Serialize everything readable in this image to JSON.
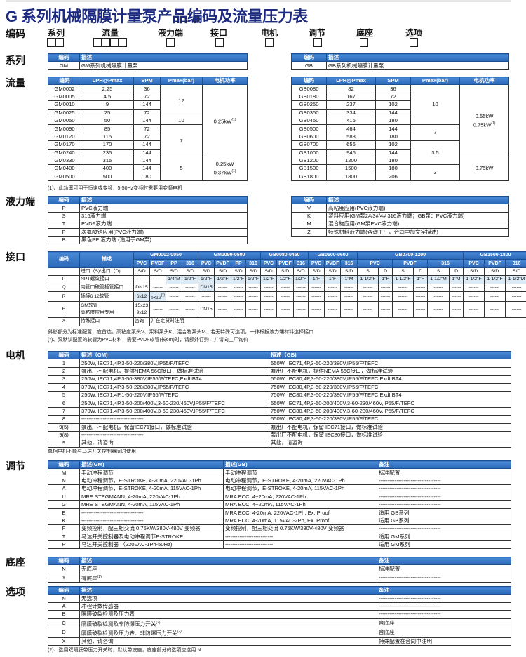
{
  "title": "G 系列机械隔膜计量泵产品编码及流量压力表",
  "code_row": {
    "label": "编码",
    "fields": [
      {
        "label": "系列",
        "boxes": 2
      },
      {
        "label": "流量",
        "boxes": 4
      },
      {
        "label": "液力端",
        "boxes": 1
      },
      {
        "label": "接口",
        "boxes": 1
      },
      {
        "label": "电机",
        "boxes": 1
      },
      {
        "label": "调节",
        "boxes": 1
      },
      {
        "label": "底座",
        "boxes": 1
      },
      {
        "label": "选项",
        "boxes": 1
      }
    ]
  },
  "sections": {
    "series": "系列",
    "flow": "流量",
    "wet_end": "液力端",
    "connection": "接口",
    "motor": "电机",
    "control": "调节",
    "base": "底座",
    "options": "选项"
  },
  "theme": {
    "header_blue": "#2e74c5",
    "highlight": "#dceaf6",
    "title_color": "#1c2a80"
  },
  "tables": {
    "series_gm": {
      "header": [
        [
          "编码",
          "描述"
        ]
      ],
      "rows": [
        [
          "GM",
          "GM系列机械隔膜计量泵"
        ]
      ]
    },
    "series_gb": {
      "header": [
        [
          "编码",
          "描述"
        ]
      ],
      "rows": [
        [
          "GB",
          "GB系列机械隔膜计量泵"
        ]
      ]
    },
    "flow_gm": {
      "header": [
        [
          "编码",
          "LPH@Pmax",
          "SPM",
          "Pmax(bar)",
          "电机功率"
        ]
      ],
      "rows": [
        [
          "GM0002",
          "2.25",
          "36",
          {
            "t": "12",
            "rs": 4
          },
          {
            "t": "0.25kW",
            "sup": "(1)",
            "rs": 9
          }
        ],
        [
          "GM0005",
          "4.5",
          "72"
        ],
        [
          "GM0010",
          "9",
          "144"
        ],
        [
          "GM0025",
          "25",
          "72"
        ],
        [
          "GM0050",
          "50",
          "144",
          "10"
        ],
        [
          "GM0090",
          "85",
          "72",
          {
            "t": "7",
            "rs": 4
          }
        ],
        [
          "GM0120",
          "115",
          "72"
        ],
        [
          "GM0170",
          "170",
          "144"
        ],
        [
          "GM0240",
          "235",
          "144"
        ],
        [
          "GM0330",
          "315",
          "144",
          {
            "t": "5",
            "rs": 3
          },
          {
            "t": "0.25kW",
            "t2": "0.37kW",
            "sup": "(1)",
            "rs": 3
          }
        ],
        [
          "GM0400",
          "400",
          "144"
        ],
        [
          "GM0500",
          "500",
          "180"
        ]
      ]
    },
    "flow_gb": {
      "header": [
        [
          "编码",
          "LPH@Pmax",
          "SPM",
          "Pmax(bar)",
          "电机功率"
        ]
      ],
      "rows": [
        [
          "GB0080",
          "82",
          "36",
          {
            "t": "10",
            "rs": 5
          },
          {
            "t": "0.55kW",
            "t2": "0.75kW",
            "sup": "(1)",
            "rs": 9
          }
        ],
        [
          "GB0180",
          "167",
          "72"
        ],
        [
          "GB0250",
          "237",
          "102"
        ],
        [
          "GB0350",
          "334",
          "144"
        ],
        [
          "GB0450",
          "416",
          "180"
        ],
        [
          "GB0500",
          "464",
          "144",
          {
            "t": "7",
            "rs": 2
          }
        ],
        [
          "GB0600",
          "583",
          "180"
        ],
        [
          "GB0700",
          "656",
          "102",
          {
            "t": "3.5",
            "rs": 3
          }
        ],
        [
          "GB1000",
          "946",
          "144"
        ],
        [
          "GB1200",
          "1200",
          "180",
          {
            "t": "0.75kW",
            "rs": 3
          }
        ],
        [
          "GB1500",
          "1500",
          "180",
          {
            "t": "3",
            "rs": 2
          }
        ],
        [
          "GB1800",
          "1800",
          "206"
        ]
      ]
    },
    "wet_left": {
      "header": [
        [
          "编码",
          "描述"
        ]
      ],
      "rows": [
        [
          "P",
          "PVC液力端"
        ],
        [
          "S",
          "316液力端"
        ],
        [
          "T",
          "PVDF液力端"
        ],
        [
          "F",
          "次氯酸钠应用(PVC液力端)"
        ],
        [
          "B",
          "黑色PP 液力端 (适用于GM泵)"
        ]
      ]
    },
    "wet_right": {
      "header": [
        [
          "编码",
          "描述"
        ]
      ],
      "rows": [
        [
          "V",
          "高粘度应用(PVC液力端)"
        ],
        [
          "K",
          "浆料应用(GM泵2#/3#/4# 316液力端；GB泵：PVC液力端)"
        ],
        [
          "M",
          "混合物应用(GM泵PVC液力端)"
        ],
        [
          "Z",
          "特殊材料液力端(咨询工厂，合同中加文字描述)"
        ]
      ]
    },
    "connection": {
      "header": [
        [
          {
            "t": "编码",
            "rs": 2
          },
          {
            "t": "描述",
            "rs": 2
          },
          {
            "t": "GM0002-0050",
            "cs": 4
          },
          {
            "t": "GM0090-0500",
            "cs": 4
          },
          {
            "t": "GB0080-0450",
            "cs": 3
          },
          {
            "t": "GB0500-0600",
            "cs": 3
          },
          {
            "t": "GB0700-1200",
            "cs": 6
          },
          {
            "t": "GB1500-1800",
            "cs": 3
          }
        ],
        [
          "PVC",
          "PVDF",
          "PP",
          "316",
          "PVC",
          "PVDF",
          "PP",
          "316",
          "PVC",
          "PVDF",
          "316",
          "PVC",
          "PVDF",
          "316",
          {
            "t": "PVC",
            "cs": 2
          },
          {
            "t": "PVDF",
            "cs": 2
          },
          {
            "t": "316",
            "cs": 2
          },
          "PVC",
          "PVDF",
          "316"
        ]
      ],
      "rows": [
        [
          "",
          "进口（S)/出口（D)",
          "S/D",
          "S/D",
          "S/D",
          "S/D",
          "S/D",
          "S/D",
          "S/D",
          "S/D",
          "S/D",
          "S/D",
          "S/D",
          "S/D",
          "S/D",
          "S/D",
          "S",
          "D",
          "S",
          "D",
          "S",
          "D",
          "S/D",
          "S/D",
          "S/D"
        ],
        [
          "P",
          "NPT螺纹接口",
          "------",
          "------",
          {
            "t": "1/4\"M",
            "hl": 1
          },
          {
            "t": "1/2\"F",
            "hl": 1
          },
          {
            "t": "1/2\"F",
            "hl": 1
          },
          {
            "t": "1/2\"F",
            "hl": 1
          },
          {
            "t": "1/2\"F",
            "hl": 1
          },
          {
            "t": "1/2\"F",
            "hl": 1
          },
          {
            "t": "1/2\"F",
            "hl": 1
          },
          {
            "t": "1/2\"F",
            "hl": 1
          },
          {
            "t": "1/2\"F",
            "hl": 1
          },
          {
            "t": "1\"F",
            "hl": 1
          },
          {
            "t": "1\"F",
            "hl": 1
          },
          {
            "t": "1\"M",
            "hl": 1
          },
          {
            "t": "1-1/2\"F",
            "hl": 1
          },
          {
            "t": "1\"F",
            "hl": 1
          },
          {
            "t": "1-1/2\"F",
            "hl": 1
          },
          {
            "t": "1\"F",
            "hl": 1
          },
          {
            "t": "1-1/2\"M",
            "hl": 1
          },
          {
            "t": "1\"M",
            "hl": 1
          },
          {
            "t": "1-1/2\"F",
            "hl": 1
          },
          {
            "t": "1-1/2\"F",
            "hl": 1
          },
          {
            "t": "1-1/2\"M",
            "hl": 1
          }
        ],
        [
          "Q",
          "内管口破管插管接口",
          "DN15",
          "------",
          "------",
          "------",
          {
            "t": "DN15",
            "hl": 1
          },
          "------",
          "------",
          "------",
          "------",
          "------",
          "------",
          "------",
          "------",
          "------",
          "------",
          "------",
          "------",
          "------",
          "------",
          "------",
          "------",
          "------",
          "------"
        ],
        [
          "R",
          "插接6   12软管",
          {
            "t": "6x12",
            "hl": 1
          },
          {
            "t": "6x12",
            "sup": "(*)",
            "hl": 1
          },
          "------",
          "------",
          "------",
          "------",
          "------",
          "------",
          "------",
          "------",
          "------",
          "------",
          "------",
          "------",
          "------",
          "------",
          "------",
          "------",
          "------",
          "------",
          "------",
          "------",
          "------"
        ],
        [
          "H",
          {
            "t": "GM软管",
            "t2": "高粘度应用专用"
          },
          {
            "t": "15x23",
            "t2": "9x12"
          },
          "------",
          "------",
          "------",
          "DN15",
          "------",
          "------",
          "------",
          "------",
          "------",
          "------",
          "------",
          "------",
          "------",
          "------",
          "------",
          "------",
          "------",
          "------",
          "------",
          "------",
          "------",
          "------"
        ],
        [
          "X",
          "特殊接口",
          "咨询",
          {
            "t": "并在定货时注明",
            "cs": 22
          }
        ]
      ]
    },
    "motor": {
      "header": [
        [
          "编码",
          "描述（GM)",
          "描述（GB)"
        ]
      ],
      "rows": [
        [
          "1",
          "250W, IEC71,4P,3-50-220/380V,IP55/F/TEFC",
          "550W, IEC71,4P,3-50-220/380V,IP55/F/TEFC"
        ],
        [
          "2",
          "泵出厂不配电机，提供NEMA 56C接口，做标准试验",
          "泵出厂不配电机，提供NEMA 56C接口，做标准试验"
        ],
        [
          "3",
          "250W, IEC71,4P,3-50-380V,IP55/F/TEFC,ExdIIBT4",
          "550W, IEC80,4P,3-50-220/380V,IP55/F/TEFC,ExdIIBT4"
        ],
        [
          "4",
          "370W, IEC71,4P,3-50-220/380V,IP55/F/TEFC",
          "750W, IEC80,4P,3-50-220/380V,IP55/F/TEFC"
        ],
        [
          "5",
          "250W, IEC71,4P,1-50-220V,IP55/F/TEFC",
          "750W, IEC80,4P,3-50-220/380V,IP55/F/TEFC,ExdIIBT4"
        ],
        [
          "6",
          "250W, IEC71,4P,3-50-200/400V,3-60-230/460V,IP55/F/TEFC",
          "550W, IEC71,4P,3-50-200/400V,3-60-230/460V,IP55/F/TEFC"
        ],
        [
          "7",
          "370W, IEC71,4P,3-50-200/400V,3-60-230/460V,IP55/F/TEFC",
          "750W, IEC80,4P,3-50-200/400V,3-60-230/460V,IP55/F/TEFC"
        ],
        [
          "8",
          "-----------------------------------",
          "550W, IEC80,4P,3-50-220/380V,IP55/F/TEFC"
        ],
        [
          "9(5)",
          "泵出厂不配电机，保留IEC71接口，做标准试验",
          "泵出厂不配电机，保留 IEC71接口，做标准试验"
        ],
        [
          "9(8)",
          "-----------------------------------",
          "泵出厂不配电机，保留 IEC80接口，做标准试验"
        ],
        [
          "9",
          "其他，请咨询",
          "其他，请咨询"
        ]
      ]
    },
    "control": {
      "header": [
        [
          "编码",
          "描述(GM)",
          "描述(GB)",
          "备注"
        ]
      ],
      "rows": [
        [
          "M",
          "手动冲程调节",
          "手动冲程调节",
          "标准配置"
        ],
        [
          "N",
          "电动冲程调节，E-STROKE, 4-20mA, 220VAC-1Ph",
          "电动冲程调节，E-STROKE, 4-20mA, 220VAC-1Ph",
          "-----------------------------------"
        ],
        [
          "A",
          "电动冲程调节，E-STROKE, 4-20mA, 115VAC-1Ph",
          "电动冲程调节，E-STROKE, 4-20mA, 115VAC-1Ph",
          "-----------------------------------"
        ],
        [
          "U",
          "MRE STEGMANN, 4-20mA, 220VAC-1Ph",
          "MRA ECC, 4~20mA, 220VAC-1Ph",
          "-----------------------------------"
        ],
        [
          "G",
          "MRE STEGMANN, 4-20mA, 115VAC-1Ph",
          "MRA ECC, 4~20mA, 115VAC-1Ph",
          "-----------------------------------"
        ],
        [
          "E",
          "-----------------------------------",
          "MRA ECC, 4-20mA, 220VAC-1Ph, Ex. Proof",
          "适用 GB系列"
        ],
        [
          "K",
          "-----------------------------------",
          "MRA ECC, 4-20mA, 115VAC-2Ph, Ex. Proof",
          "适用 GB系列"
        ],
        [
          "F",
          "变频控制，配三相交流 0.75KW/380V-480V 变频器",
          "变频控制，配三相交流 0.75KW/380V-480V 变频器",
          "-----------------------------------"
        ],
        [
          "T",
          "马达开关控制器及电动冲程调节E-STROKE",
          "---------------------------",
          "适用 GM系列"
        ],
        [
          "P",
          "马达开关控制器 （220VAC-1Ph-50Hz)",
          "---------------------------",
          "适用 GM系列"
        ]
      ]
    },
    "base": {
      "header": [
        [
          "编码",
          "描述",
          "备注"
        ]
      ],
      "rows": [
        [
          "N",
          "无底座",
          "标准配置"
        ],
        [
          "Y",
          {
            "t": "有底座",
            "sup": "(2)"
          },
          "-----------------------------------"
        ]
      ]
    },
    "options": {
      "header": [
        [
          "编码",
          "描述",
          "备注"
        ]
      ],
      "rows": [
        [
          "N",
          "无选项",
          "-----------------------------------"
        ],
        [
          "A",
          "冲程计数传感器",
          "-----------------------------------"
        ],
        [
          "B",
          "隔膜破裂检测及压力表",
          "-----------------------------------"
        ],
        [
          "C",
          {
            "t": "隔膜破裂检测及非防爆压力开关",
            "sup": "(2)"
          },
          "含底座"
        ],
        [
          "D",
          {
            "t": "隔膜破裂检测及压力表、非防爆压力开关",
            "sup": "(2)"
          },
          "含底座"
        ],
        [
          "X",
          "其他，请咨询",
          "特殊配置在合同中注明"
        ]
      ]
    }
  },
  "notes": {
    "flow": "(1)、此功率可用于恒速或变频，5-50Hz变频时需要用变频电机",
    "connection_1": "斜影部分为标准配置，应首选。高粘度泵头V、浆料泵头K、混合物泵头M、若无特殊可选项，一律根据液力端材料选择接口",
    "connection_2": "(*)、泵默认配置的软管为PVC材料，需要PVDF软管(长6m)时，请额外订购，并请向工厂询价",
    "motor": "单相电机不能与马达开关控制器同时使用",
    "options": "(2)、选用双隔膜带压力开关时，默认带底座，底座部分的选项应选用 N"
  }
}
